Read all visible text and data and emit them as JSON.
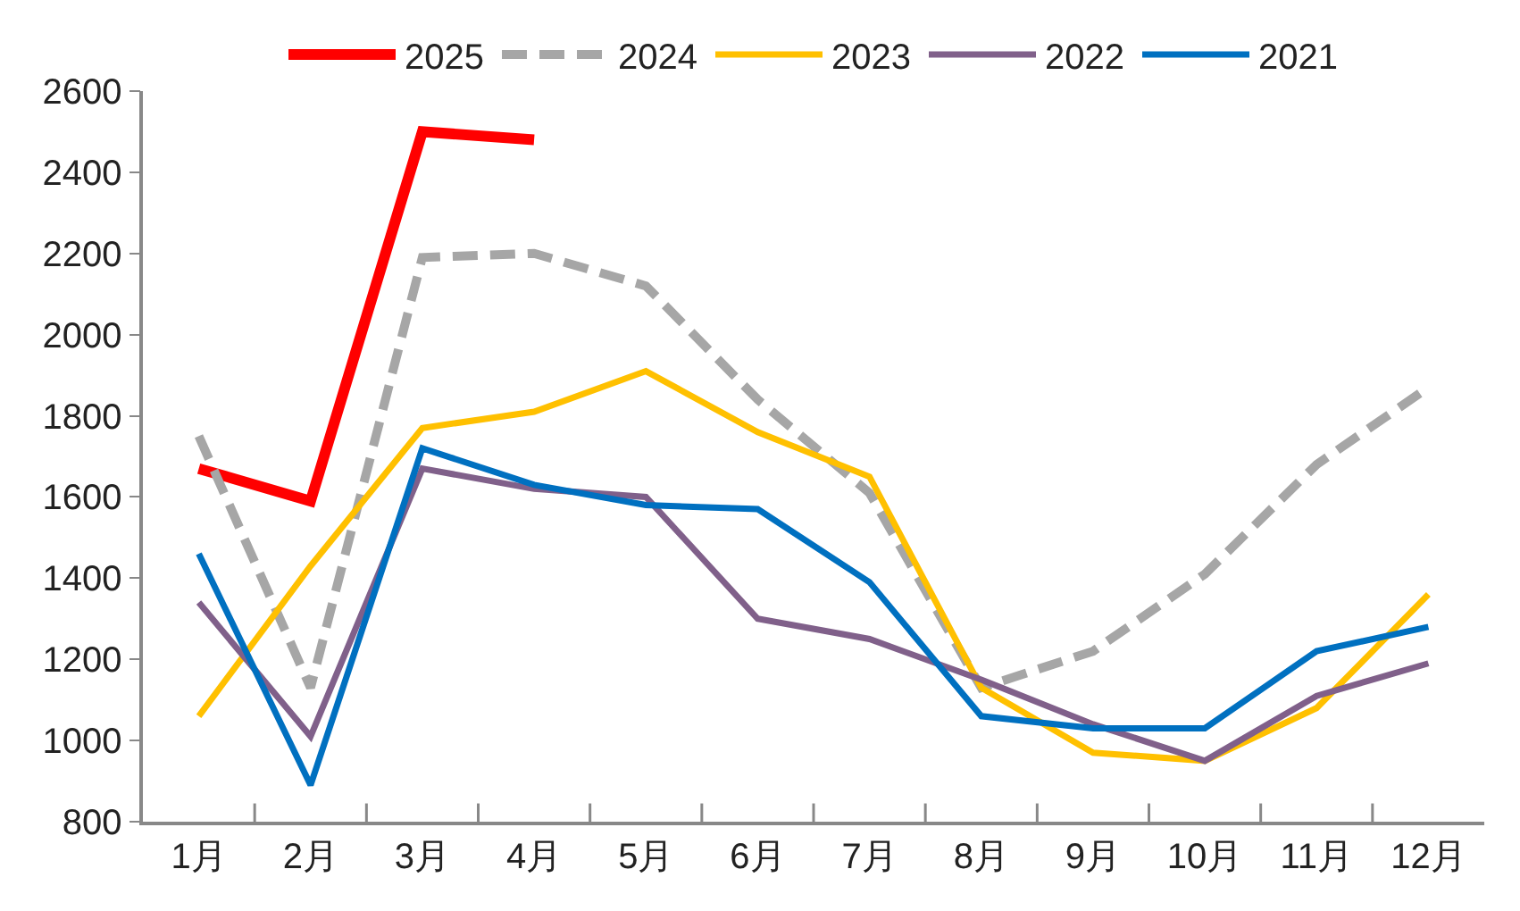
{
  "chart_data": {
    "type": "line",
    "categories": [
      "1月",
      "2月",
      "3月",
      "4月",
      "5月",
      "6月",
      "7月",
      "8月",
      "9月",
      "10月",
      "11月",
      "12月"
    ],
    "series": [
      {
        "name": "2025",
        "color": "#ff0000",
        "values": [
          1670,
          1590,
          2500,
          2480,
          null,
          null,
          null,
          null,
          null,
          null,
          null,
          null
        ]
      },
      {
        "name": "2024",
        "color": "#a6a6a6",
        "line_style": "dashed",
        "values": [
          1750,
          1130,
          2190,
          2200,
          2120,
          1840,
          1610,
          1130,
          1220,
          1410,
          1680,
          1870
        ]
      },
      {
        "name": "2023",
        "color": "#ffc000",
        "values": [
          1060,
          1430,
          1770,
          1810,
          1910,
          1760,
          1650,
          1130,
          970,
          950,
          1080,
          1360
        ]
      },
      {
        "name": "2022",
        "color": "#80608a",
        "values": [
          1340,
          1010,
          1670,
          1620,
          1600,
          1300,
          1250,
          1150,
          1040,
          950,
          1110,
          1190
        ]
      },
      {
        "name": "2021",
        "color": "#0070c0",
        "values": [
          1460,
          890,
          1720,
          1630,
          1580,
          1570,
          1390,
          1060,
          1030,
          1030,
          1220,
          1280
        ]
      }
    ],
    "ylim": [
      800,
      2600
    ],
    "yticks": [
      800,
      1000,
      1200,
      1400,
      1600,
      1800,
      2000,
      2200,
      2400,
      2600
    ],
    "legend": "top",
    "marker": "none",
    "line_style": "solid"
  }
}
